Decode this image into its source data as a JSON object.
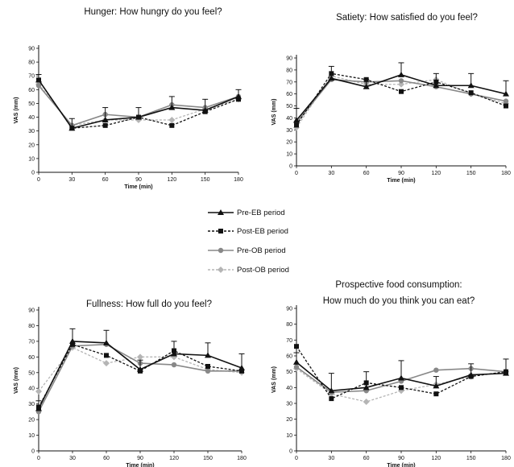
{
  "legend": [
    {
      "label": "Pre-EB period"
    },
    {
      "label": "Post-EB period"
    },
    {
      "label": "Pre-OB period"
    },
    {
      "label": "Post-OB period"
    }
  ],
  "colors": {
    "pre_eb": "#111111",
    "post_eb": "#111111",
    "pre_ob": "#888888",
    "post_ob": "#b5b5b5"
  },
  "chart_data": [
    {
      "type": "line",
      "title_lines": [
        "Hunger: How hungry do you feel?"
      ],
      "xlabel": "Time  (min)",
      "ylabel": "VAS  (mm)",
      "x": [
        0,
        30,
        60,
        90,
        120,
        150,
        180
      ],
      "xlim": [
        0,
        180
      ],
      "ylim": [
        0,
        90
      ],
      "yticks": [
        0,
        10,
        20,
        30,
        40,
        50,
        60,
        70,
        80,
        90
      ],
      "grid": false,
      "series": [
        {
          "name": "Pre-EB period",
          "values": [
            67,
            32,
            38,
            40,
            47,
            45,
            55
          ],
          "error": [
            4,
            7,
            9,
            7,
            8,
            8,
            5
          ]
        },
        {
          "name": "Post-EB period",
          "values": [
            67,
            32,
            34,
            40,
            34,
            44,
            53
          ]
        },
        {
          "name": "Pre-OB period",
          "values": [
            63,
            34,
            42,
            40,
            49,
            47,
            55
          ]
        },
        {
          "name": "Post-OB period",
          "values": [
            64,
            34,
            38,
            38,
            38,
            46,
            53
          ]
        }
      ]
    },
    {
      "type": "line",
      "title_lines": [
        "Satiety:  How satisfied do you feel?"
      ],
      "xlabel": "Time  (min)",
      "ylabel": "VAS  (mm)",
      "x": [
        0,
        30,
        60,
        90,
        120,
        150,
        180
      ],
      "xlim": [
        0,
        180
      ],
      "ylim": [
        0,
        90
      ],
      "yticks": [
        0,
        10,
        20,
        30,
        40,
        50,
        60,
        70,
        80,
        90
      ],
      "grid": false,
      "series": [
        {
          "name": "Pre-EB period",
          "values": [
            38,
            73,
            66,
            76,
            67,
            67,
            60
          ],
          "error": [
            10,
            10,
            6,
            10,
            10,
            10,
            11
          ]
        },
        {
          "name": "Post-EB period",
          "values": [
            34,
            77,
            72,
            62,
            70,
            61,
            50
          ]
        },
        {
          "name": "Pre-OB period",
          "values": [
            36,
            72,
            70,
            71,
            66,
            60,
            54
          ]
        },
        {
          "name": "Post-OB period",
          "values": [
            32,
            75,
            68,
            68,
            72,
            60,
            52
          ]
        }
      ]
    },
    {
      "type": "line",
      "title_lines": [
        "Fullness:  How full do you feel?"
      ],
      "xlabel": "Time  (min)",
      "ylabel": "VAS  (mm)",
      "x": [
        0,
        30,
        60,
        90,
        120,
        150,
        180
      ],
      "xlim": [
        0,
        180
      ],
      "ylim": [
        0,
        90
      ],
      "yticks": [
        0,
        10,
        20,
        30,
        40,
        50,
        60,
        70,
        80,
        90
      ],
      "grid": false,
      "series": [
        {
          "name": "Pre-EB period",
          "values": [
            27,
            70,
            69,
            52,
            62,
            61,
            53
          ],
          "error": [
            5,
            8,
            8,
            6,
            8,
            8,
            9
          ]
        },
        {
          "name": "Post-EB period",
          "values": [
            28,
            68,
            61,
            51,
            64,
            54,
            51
          ]
        },
        {
          "name": "Pre-OB period",
          "values": [
            25,
            67,
            68,
            56,
            55,
            51,
            51
          ]
        },
        {
          "name": "Post-OB period",
          "values": [
            38,
            66,
            56,
            60,
            60,
            52,
            50
          ]
        }
      ]
    },
    {
      "type": "line",
      "title_lines": [
        "Prospective food consumption:",
        "How much do you think you can eat?"
      ],
      "xlabel": "Time  (min)",
      "ylabel": "VAS  (mm)",
      "x": [
        0,
        30,
        60,
        90,
        120,
        150,
        180
      ],
      "xlim": [
        0,
        180
      ],
      "ylim": [
        0,
        90
      ],
      "yticks": [
        0,
        10,
        20,
        30,
        40,
        50,
        60,
        70,
        80,
        90
      ],
      "grid": false,
      "series": [
        {
          "name": "Pre-EB period",
          "values": [
            56,
            38,
            40,
            46,
            41,
            48,
            49
          ],
          "error": [
            6,
            11,
            10,
            11,
            6,
            7,
            9
          ]
        },
        {
          "name": "Post-EB period",
          "values": [
            66,
            33,
            43,
            40,
            36,
            47,
            50
          ]
        },
        {
          "name": "Pre-OB period",
          "values": [
            53,
            37,
            38,
            44,
            51,
            52,
            50
          ]
        },
        {
          "name": "Post-OB period",
          "values": [
            52,
            36,
            31,
            38,
            42,
            47,
            50
          ]
        }
      ]
    }
  ]
}
